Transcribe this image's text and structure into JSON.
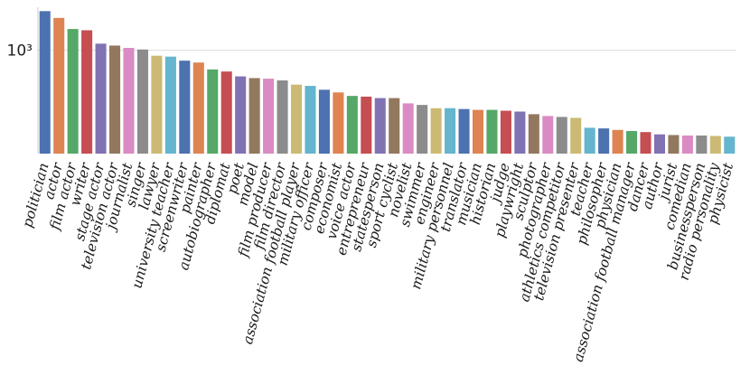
{
  "chart_data": {
    "type": "bar",
    "yscale": "log",
    "title": "",
    "xlabel": "",
    "ylabel": "",
    "ylim": [
      280,
      1700
    ],
    "grid": "horizontal",
    "yticks": [
      {
        "value": 1000,
        "label": "10³"
      }
    ],
    "categories": [
      "politician",
      "actor",
      "film actor",
      "writer",
      "stage actor",
      "television actor",
      "journalist",
      "singer",
      "lawyer",
      "university teacher",
      "screenwriter",
      "painter",
      "autobiographer",
      "diplomat",
      "poet",
      "model",
      "film producer",
      "film director",
      "association football player",
      "military officer",
      "composer",
      "economist",
      "voice actor",
      "entrepreneur",
      "statesperson",
      "sport cyclist",
      "novelist",
      "swimmer",
      "engineer",
      "military personnel",
      "translator",
      "musician",
      "historian",
      "judge",
      "playwright",
      "sculptor",
      "photographer",
      "athletics competitor",
      "television presenter",
      "teacher",
      "philosopher",
      "physician",
      "association football manager",
      "dancer",
      "author",
      "jurist",
      "comedian",
      "businessperson",
      "radio personality",
      "physicist"
    ],
    "values": [
      1620,
      1490,
      1300,
      1280,
      1085,
      1060,
      1030,
      1010,
      935,
      925,
      880,
      860,
      790,
      770,
      725,
      710,
      705,
      690,
      655,
      645,
      615,
      595,
      570,
      565,
      555,
      555,
      520,
      510,
      490,
      490,
      485,
      480,
      480,
      475,
      470,
      455,
      445,
      440,
      435,
      385,
      382,
      375,
      370,
      365,
      355,
      352,
      350,
      350,
      348,
      345
    ],
    "colors": [
      "#4c72b0",
      "#dd8452",
      "#55a868",
      "#c44e52",
      "#8172b3",
      "#937860",
      "#da8bc3",
      "#8c8c8c",
      "#ccb974",
      "#64b5cd"
    ]
  }
}
